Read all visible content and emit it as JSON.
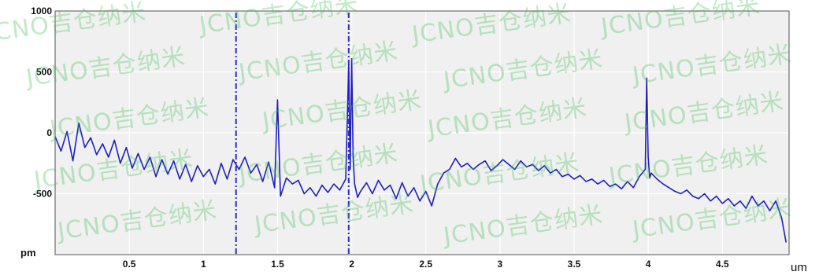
{
  "colors": {
    "plot_bg": "#f0f0f0",
    "border": "#6f6f6f",
    "grid": "#ffffff",
    "line": "#1f1fbf",
    "marker": "#2a2ad8",
    "text": "#111111",
    "watermark": "#3cbe50"
  },
  "watermark": {
    "text": "JCNO吉仓纳米"
  },
  "chart_data": {
    "type": "line",
    "xlabel": "um",
    "ylabel": "pm",
    "xlim": [
      0,
      4.95
    ],
    "ylim": [
      -1000,
      1000
    ],
    "x_ticks": [
      0.5,
      1,
      1.5,
      2,
      2.5,
      3,
      3.5,
      4,
      4.5
    ],
    "x_tick_labels": [
      "0.5",
      "1",
      "1.5",
      "2",
      "2.5",
      "3",
      "3.5",
      "4",
      "4.5"
    ],
    "y_ticks": [
      1000,
      500,
      0,
      -500
    ],
    "y_tick_labels": [
      "1000",
      "500",
      "0",
      "-500"
    ],
    "grid": true,
    "markers": [
      {
        "x": 1.22,
        "style": "dash-dot"
      },
      {
        "x": 1.98,
        "style": "dash-dot"
      }
    ],
    "series": [
      {
        "x": [
          0.0,
          0.04,
          0.08,
          0.12,
          0.16,
          0.2,
          0.24,
          0.28,
          0.32,
          0.36,
          0.4,
          0.44,
          0.48,
          0.52,
          0.56,
          0.6,
          0.64,
          0.68,
          0.72,
          0.76,
          0.8,
          0.84,
          0.88,
          0.92,
          0.96,
          1.0,
          1.04,
          1.08,
          1.12,
          1.16,
          1.2,
          1.24,
          1.28,
          1.32,
          1.36,
          1.4,
          1.44,
          1.48,
          1.5,
          1.52,
          1.56,
          1.6,
          1.64,
          1.68,
          1.72,
          1.76,
          1.8,
          1.84,
          1.88,
          1.92,
          1.96,
          1.98,
          1.99,
          2.0,
          2.01,
          2.02,
          2.04,
          2.06,
          2.1,
          2.14,
          2.18,
          2.22,
          2.26,
          2.3,
          2.34,
          2.38,
          2.42,
          2.46,
          2.5,
          2.54,
          2.58,
          2.62,
          2.66,
          2.7,
          2.74,
          2.78,
          2.82,
          2.86,
          2.9,
          2.94,
          2.98,
          3.02,
          3.06,
          3.1,
          3.14,
          3.18,
          3.22,
          3.26,
          3.3,
          3.34,
          3.38,
          3.42,
          3.46,
          3.5,
          3.54,
          3.58,
          3.62,
          3.66,
          3.7,
          3.74,
          3.78,
          3.82,
          3.86,
          3.9,
          3.94,
          3.98,
          3.99,
          4.0,
          4.01,
          4.02,
          4.06,
          4.1,
          4.14,
          4.18,
          4.22,
          4.26,
          4.3,
          4.34,
          4.38,
          4.42,
          4.46,
          4.5,
          4.54,
          4.58,
          4.62,
          4.66,
          4.7,
          4.74,
          4.78,
          4.82,
          4.86,
          4.9,
          4.93
        ],
        "values": [
          -30,
          -150,
          10,
          -230,
          80,
          -120,
          -40,
          -180,
          -90,
          -200,
          -60,
          -250,
          -120,
          -290,
          -170,
          -300,
          -200,
          -360,
          -220,
          -340,
          -230,
          -380,
          -260,
          -400,
          -270,
          -360,
          -300,
          -420,
          -250,
          -380,
          -220,
          -300,
          -200,
          -330,
          -260,
          -400,
          -240,
          -450,
          270,
          -520,
          -370,
          -420,
          -390,
          -500,
          -450,
          -520,
          -430,
          -490,
          -420,
          -470,
          -380,
          560,
          -300,
          610,
          -200,
          -420,
          -530,
          -480,
          -410,
          -500,
          -390,
          -470,
          -430,
          -540,
          -410,
          -520,
          -450,
          -560,
          -480,
          -600,
          -420,
          -330,
          -300,
          -210,
          -280,
          -250,
          -300,
          -260,
          -230,
          -310,
          -270,
          -220,
          -260,
          -300,
          -230,
          -280,
          -260,
          -310,
          -270,
          -330,
          -300,
          -360,
          -340,
          -380,
          -350,
          -400,
          -380,
          -420,
          -390,
          -440,
          -420,
          -460,
          -400,
          -450,
          -360,
          -300,
          450,
          -200,
          -370,
          -330,
          -380,
          -420,
          -450,
          -480,
          -500,
          -470,
          -520,
          -540,
          -500,
          -560,
          -520,
          -580,
          -540,
          -600,
          -560,
          -620,
          -520,
          -600,
          -560,
          -640,
          -560,
          -700,
          -900
        ]
      }
    ]
  }
}
